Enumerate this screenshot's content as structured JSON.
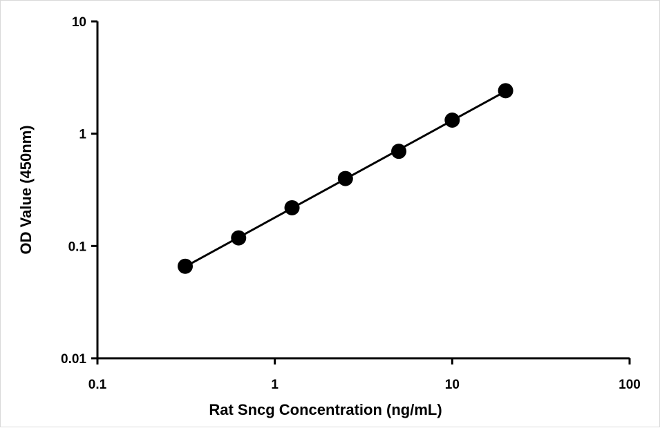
{
  "chart_data": {
    "type": "scatter",
    "title": "",
    "xlabel": "Rat Sncg Concentration (ng/mL)",
    "ylabel": "OD Value (450nm)",
    "x_scale": "log",
    "y_scale": "log",
    "xlim": [
      0.1,
      100
    ],
    "ylim": [
      0.01,
      10
    ],
    "x_ticks": [
      "0.1",
      "1",
      "10",
      "100"
    ],
    "y_ticks": [
      "0.01",
      "0.1",
      "1",
      "10"
    ],
    "grid": false,
    "legend": "none",
    "series": [
      {
        "x": [
          0.3125,
          0.625,
          1.25,
          2.5,
          5,
          10,
          20
        ],
        "y": [
          0.066,
          0.118,
          0.219,
          0.399,
          0.697,
          1.321,
          2.415
        ],
        "marker_color": "#000000",
        "line_color": "#000000",
        "fit": "log-log linear"
      }
    ]
  }
}
